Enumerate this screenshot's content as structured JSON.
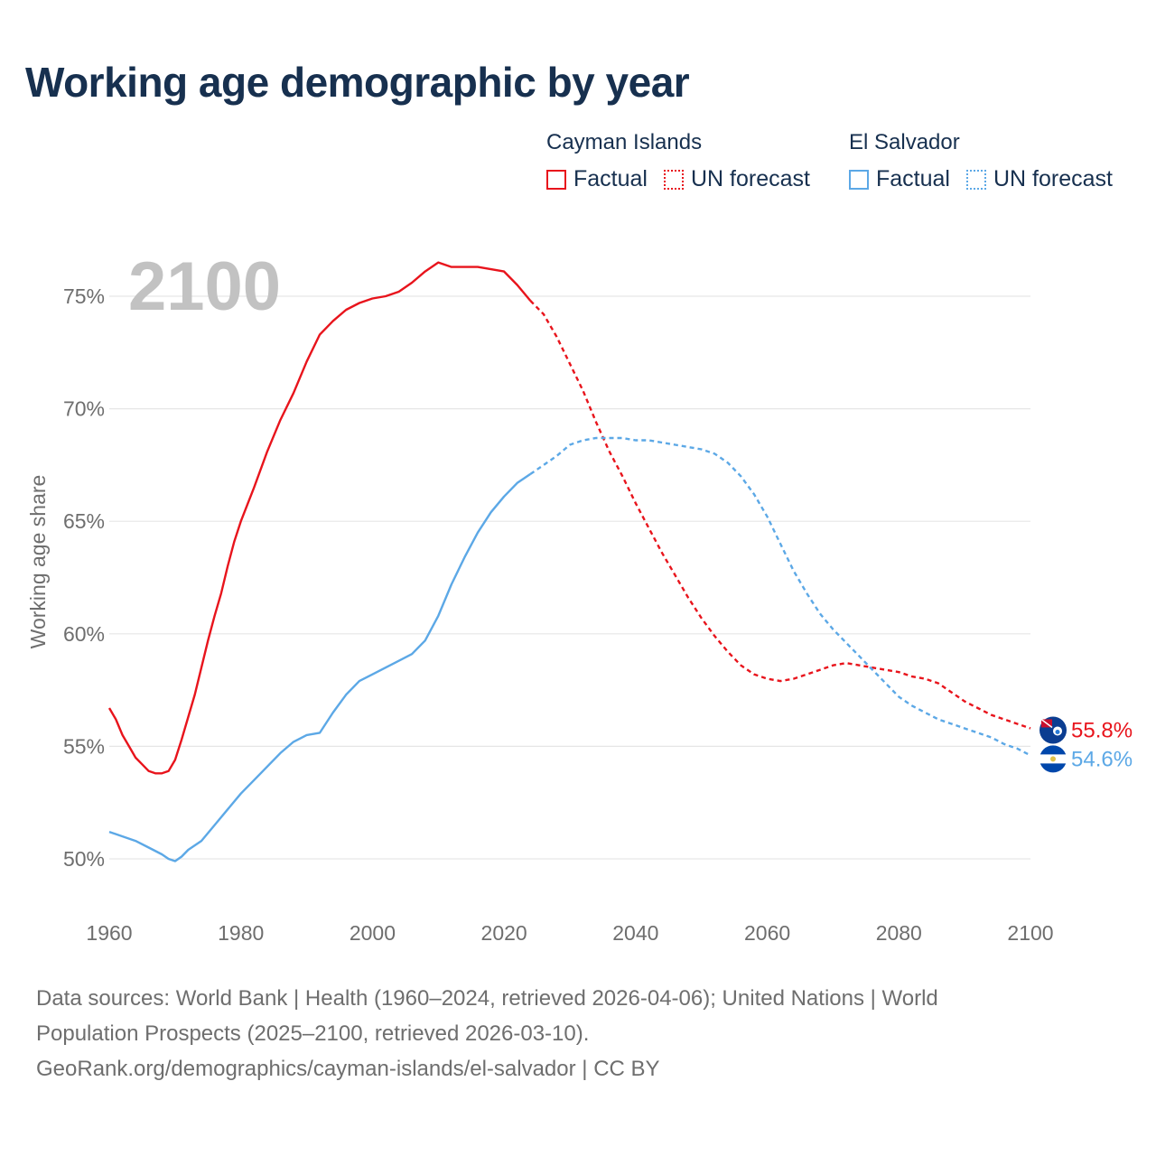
{
  "title": "Working age demographic by year",
  "legend": {
    "groups": [
      {
        "name": "Cayman Islands",
        "color": "#e8141c",
        "factual_label": "Factual",
        "forecast_label": "UN forecast"
      },
      {
        "name": "El Salvador",
        "color": "#5ca8e6",
        "factual_label": "Factual",
        "forecast_label": "UN forecast"
      }
    ]
  },
  "chart_data": {
    "type": "line",
    "title": "Working age demographic by year",
    "xlabel": "",
    "ylabel": "Working age share",
    "xlim": [
      1960,
      2100
    ],
    "ylim": [
      48,
      77
    ],
    "x_ticks": [
      1960,
      1980,
      2000,
      2020,
      2040,
      2060,
      2080,
      2100
    ],
    "x_tick_labels": [
      "1960",
      "1980",
      "2000",
      "2020",
      "2040",
      "2060",
      "2080",
      "2100"
    ],
    "y_ticks": [
      50,
      55,
      60,
      65,
      70,
      75
    ],
    "y_tick_labels": [
      "50%",
      "55%",
      "60%",
      "65%",
      "70%",
      "75%"
    ],
    "highlight_year": "2100",
    "factual_end": 2024,
    "series": [
      {
        "name": "Cayman Islands",
        "color": "#e8141c",
        "end_label": "55.8%",
        "points": [
          [
            1960,
            56.7
          ],
          [
            1961,
            56.2
          ],
          [
            1962,
            55.5
          ],
          [
            1963,
            55.0
          ],
          [
            1964,
            54.5
          ],
          [
            1965,
            54.2
          ],
          [
            1966,
            53.9
          ],
          [
            1967,
            53.8
          ],
          [
            1968,
            53.8
          ],
          [
            1969,
            53.9
          ],
          [
            1970,
            54.4
          ],
          [
            1971,
            55.3
          ],
          [
            1972,
            56.3
          ],
          [
            1973,
            57.3
          ],
          [
            1974,
            58.5
          ],
          [
            1975,
            59.7
          ],
          [
            1976,
            60.8
          ],
          [
            1977,
            61.8
          ],
          [
            1978,
            63.0
          ],
          [
            1979,
            64.1
          ],
          [
            1980,
            65.0
          ],
          [
            1982,
            66.5
          ],
          [
            1984,
            68.1
          ],
          [
            1986,
            69.5
          ],
          [
            1988,
            70.7
          ],
          [
            1990,
            72.1
          ],
          [
            1992,
            73.3
          ],
          [
            1994,
            73.9
          ],
          [
            1996,
            74.4
          ],
          [
            1998,
            74.7
          ],
          [
            2000,
            74.9
          ],
          [
            2002,
            75.0
          ],
          [
            2004,
            75.2
          ],
          [
            2006,
            75.6
          ],
          [
            2008,
            76.1
          ],
          [
            2010,
            76.5
          ],
          [
            2012,
            76.3
          ],
          [
            2014,
            76.3
          ],
          [
            2016,
            76.3
          ],
          [
            2018,
            76.2
          ],
          [
            2020,
            76.1
          ],
          [
            2022,
            75.5
          ],
          [
            2024,
            74.8
          ],
          [
            2026,
            74.2
          ],
          [
            2028,
            73.2
          ],
          [
            2030,
            72.0
          ],
          [
            2032,
            70.8
          ],
          [
            2034,
            69.4
          ],
          [
            2036,
            68.1
          ],
          [
            2038,
            67.0
          ],
          [
            2040,
            65.8
          ],
          [
            2042,
            64.7
          ],
          [
            2044,
            63.6
          ],
          [
            2046,
            62.6
          ],
          [
            2048,
            61.6
          ],
          [
            2050,
            60.7
          ],
          [
            2052,
            59.9
          ],
          [
            2054,
            59.2
          ],
          [
            2056,
            58.6
          ],
          [
            2058,
            58.2
          ],
          [
            2060,
            58.0
          ],
          [
            2062,
            57.9
          ],
          [
            2064,
            58.0
          ],
          [
            2066,
            58.2
          ],
          [
            2068,
            58.4
          ],
          [
            2070,
            58.6
          ],
          [
            2072,
            58.7
          ],
          [
            2074,
            58.6
          ],
          [
            2076,
            58.5
          ],
          [
            2078,
            58.4
          ],
          [
            2080,
            58.3
          ],
          [
            2082,
            58.1
          ],
          [
            2084,
            58.0
          ],
          [
            2086,
            57.8
          ],
          [
            2088,
            57.4
          ],
          [
            2090,
            57.0
          ],
          [
            2092,
            56.7
          ],
          [
            2094,
            56.4
          ],
          [
            2096,
            56.2
          ],
          [
            2098,
            56.0
          ],
          [
            2100,
            55.8
          ]
        ]
      },
      {
        "name": "El Salvador",
        "color": "#5ca8e6",
        "end_label": "54.6%",
        "points": [
          [
            1960,
            51.2
          ],
          [
            1962,
            51.0
          ],
          [
            1964,
            50.8
          ],
          [
            1966,
            50.5
          ],
          [
            1968,
            50.2
          ],
          [
            1969,
            50.0
          ],
          [
            1970,
            49.9
          ],
          [
            1971,
            50.1
          ],
          [
            1972,
            50.4
          ],
          [
            1974,
            50.8
          ],
          [
            1976,
            51.5
          ],
          [
            1978,
            52.2
          ],
          [
            1980,
            52.9
          ],
          [
            1982,
            53.5
          ],
          [
            1984,
            54.1
          ],
          [
            1986,
            54.7
          ],
          [
            1988,
            55.2
          ],
          [
            1990,
            55.5
          ],
          [
            1992,
            55.6
          ],
          [
            1994,
            56.5
          ],
          [
            1996,
            57.3
          ],
          [
            1998,
            57.9
          ],
          [
            2000,
            58.2
          ],
          [
            2002,
            58.5
          ],
          [
            2004,
            58.8
          ],
          [
            2006,
            59.1
          ],
          [
            2008,
            59.7
          ],
          [
            2010,
            60.8
          ],
          [
            2012,
            62.2
          ],
          [
            2014,
            63.4
          ],
          [
            2016,
            64.5
          ],
          [
            2018,
            65.4
          ],
          [
            2020,
            66.1
          ],
          [
            2022,
            66.7
          ],
          [
            2024,
            67.1
          ],
          [
            2026,
            67.5
          ],
          [
            2028,
            67.9
          ],
          [
            2030,
            68.4
          ],
          [
            2032,
            68.6
          ],
          [
            2034,
            68.7
          ],
          [
            2036,
            68.7
          ],
          [
            2038,
            68.7
          ],
          [
            2040,
            68.6
          ],
          [
            2042,
            68.6
          ],
          [
            2044,
            68.5
          ],
          [
            2046,
            68.4
          ],
          [
            2048,
            68.3
          ],
          [
            2050,
            68.2
          ],
          [
            2052,
            68.0
          ],
          [
            2054,
            67.6
          ],
          [
            2056,
            67.0
          ],
          [
            2058,
            66.2
          ],
          [
            2060,
            65.2
          ],
          [
            2062,
            64.0
          ],
          [
            2064,
            62.8
          ],
          [
            2066,
            61.8
          ],
          [
            2068,
            60.9
          ],
          [
            2070,
            60.2
          ],
          [
            2072,
            59.6
          ],
          [
            2074,
            59.0
          ],
          [
            2076,
            58.4
          ],
          [
            2078,
            57.8
          ],
          [
            2080,
            57.2
          ],
          [
            2082,
            56.8
          ],
          [
            2084,
            56.5
          ],
          [
            2086,
            56.2
          ],
          [
            2088,
            56.0
          ],
          [
            2090,
            55.8
          ],
          [
            2092,
            55.6
          ],
          [
            2094,
            55.4
          ],
          [
            2096,
            55.1
          ],
          [
            2098,
            54.9
          ],
          [
            2100,
            54.6
          ]
        ]
      }
    ]
  },
  "footer": {
    "line1": "Data sources: World Bank | Health (1960–2024, retrieved 2026-04-06); United Nations | World",
    "line2": "Population Prospects (2025–2100, retrieved 2026-03-10).",
    "line3": "GeoRank.org/demographics/cayman-islands/el-salvador | CC BY"
  }
}
